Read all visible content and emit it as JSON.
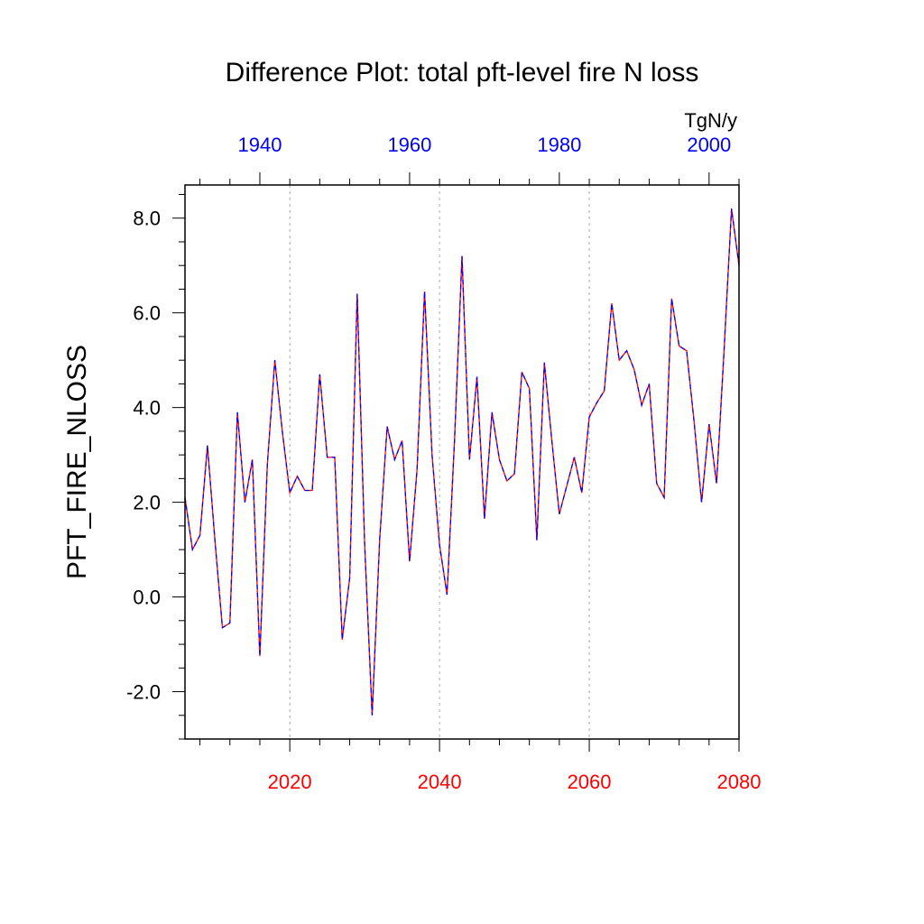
{
  "chart_data": {
    "type": "line",
    "title": "Difference Plot: total pft-level fire N loss",
    "ylabel": "PFT_FIRE_NLOSS",
    "units": "TgN/y",
    "xlim_bottom": [
      2006,
      2080
    ],
    "xlim_top": [
      1930,
      2004
    ],
    "ylim": [
      -3.0,
      8.7
    ],
    "grid": "vertical dashed at bottom-axis major ticks",
    "colors": {
      "bottom_axis": "#ff0000",
      "top_axis": "#0000ff",
      "line_a": "#ff0000",
      "line_b": "#0000ff",
      "grid": "#aaaaaa"
    },
    "bottom_ticks": [
      2020,
      2040,
      2060,
      2080
    ],
    "top_ticks": [
      1940,
      1960,
      1980,
      2000
    ],
    "y_ticks": [
      {
        "value": -2.0,
        "label": "-2.0"
      },
      {
        "value": 0.0,
        "label": "0.0"
      },
      {
        "value": 2.0,
        "label": "2.0"
      },
      {
        "value": 4.0,
        "label": "4.0"
      },
      {
        "value": 6.0,
        "label": "6.0"
      },
      {
        "value": 8.0,
        "label": "8.0"
      }
    ],
    "x": [
      2006,
      2007,
      2008,
      2009,
      2010,
      2011,
      2012,
      2013,
      2014,
      2015,
      2016,
      2017,
      2018,
      2019,
      2020,
      2021,
      2022,
      2023,
      2024,
      2025,
      2026,
      2027,
      2028,
      2029,
      2030,
      2031,
      2032,
      2033,
      2034,
      2035,
      2036,
      2037,
      2038,
      2039,
      2040,
      2041,
      2042,
      2043,
      2044,
      2045,
      2046,
      2047,
      2048,
      2049,
      2050,
      2051,
      2052,
      2053,
      2054,
      2055,
      2056,
      2057,
      2058,
      2059,
      2060,
      2061,
      2062,
      2063,
      2064,
      2065,
      2066,
      2067,
      2068,
      2069,
      2070,
      2071,
      2072,
      2073,
      2074,
      2075,
      2076,
      2077,
      2078,
      2079,
      2080
    ],
    "series": [
      {
        "values": [
          2.1,
          1.0,
          1.3,
          3.2,
          1.2,
          -0.65,
          -0.55,
          3.9,
          2.0,
          2.9,
          -1.25,
          2.8,
          5.0,
          3.5,
          2.2,
          2.55,
          2.25,
          2.25,
          4.7,
          2.95,
          2.95,
          -0.9,
          0.4,
          6.4,
          1.1,
          -2.5,
          1.2,
          3.6,
          2.9,
          3.3,
          0.75,
          2.7,
          6.45,
          3.0,
          1.1,
          0.05,
          3.3,
          7.2,
          2.9,
          4.65,
          1.65,
          3.9,
          2.9,
          2.45,
          2.6,
          4.75,
          4.4,
          1.2,
          4.95,
          3.3,
          1.75,
          2.35,
          2.95,
          2.2,
          3.8,
          4.1,
          4.35,
          6.2,
          5.0,
          5.2,
          4.8,
          4.05,
          4.5,
          2.4,
          2.1,
          6.3,
          5.3,
          5.2,
          3.7,
          2.0,
          3.65,
          2.4,
          5.2,
          8.2,
          7.0
        ]
      }
    ]
  }
}
